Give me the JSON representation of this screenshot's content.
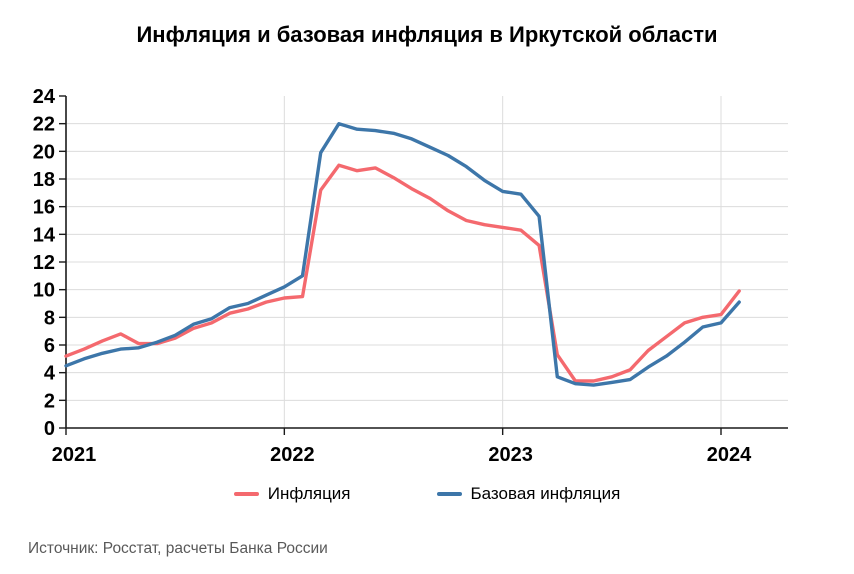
{
  "title": "Инфляция и базовая инфляция в Иркутской области",
  "source": "Источник: Росстат, расчеты Банка России",
  "colors": {
    "inflation_line": "#F4696E",
    "core_inflation_line": "#3D76A9",
    "gridline": "#DCDCDC",
    "axis": "#1A1A1A",
    "source_text": "#595959"
  },
  "legend": {
    "items": [
      {
        "label": "Инфляция",
        "color": "#F4696E"
      },
      {
        "label": "Базовая инфляция",
        "color": "#3D76A9"
      }
    ]
  },
  "chart_data": {
    "type": "line",
    "title": "Инфляция и базовая инфляция в Иркутской области",
    "xlabel": "",
    "ylabel": "",
    "ylim": [
      0,
      24
    ],
    "y_tick_step": 2,
    "y_ticks": [
      0,
      2,
      4,
      6,
      8,
      10,
      12,
      14,
      16,
      18,
      20,
      22,
      24
    ],
    "x_tick_labels": [
      "2021",
      "2022",
      "2023",
      "2024"
    ],
    "grid": true,
    "legend_position": "bottom",
    "x": [
      "2021-01",
      "2021-02",
      "2021-03",
      "2021-04",
      "2021-05",
      "2021-06",
      "2021-07",
      "2021-08",
      "2021-09",
      "2021-10",
      "2021-11",
      "2021-12",
      "2022-01",
      "2022-02",
      "2022-03",
      "2022-04",
      "2022-05",
      "2022-06",
      "2022-07",
      "2022-08",
      "2022-09",
      "2022-10",
      "2022-11",
      "2022-12",
      "2023-01",
      "2023-02",
      "2023-03",
      "2023-04",
      "2023-05",
      "2023-06",
      "2023-07",
      "2023-08",
      "2023-09",
      "2023-10",
      "2023-11",
      "2023-12",
      "2024-01",
      "2024-02"
    ],
    "series": [
      {
        "name": "Инфляция",
        "color": "#F4696E",
        "values": [
          5.2,
          5.7,
          6.3,
          6.8,
          6.1,
          6.1,
          6.5,
          7.2,
          7.6,
          8.3,
          8.6,
          9.1,
          9.4,
          9.5,
          17.2,
          19.0,
          18.6,
          18.8,
          18.1,
          17.3,
          16.6,
          15.7,
          15.0,
          14.7,
          14.5,
          14.3,
          13.2,
          5.3,
          3.4,
          3.4,
          3.7,
          4.2,
          5.6,
          6.6,
          7.6,
          8.0,
          8.2,
          9.9
        ]
      },
      {
        "name": "Базовая инфляция",
        "color": "#3D76A9",
        "values": [
          4.5,
          5.0,
          5.4,
          5.7,
          5.8,
          6.2,
          6.7,
          7.5,
          7.9,
          8.7,
          9.0,
          9.6,
          10.2,
          11.0,
          19.9,
          22.0,
          21.6,
          21.5,
          21.3,
          20.9,
          20.3,
          19.7,
          18.9,
          17.9,
          17.1,
          16.9,
          15.3,
          3.7,
          3.2,
          3.1,
          3.3,
          3.5,
          4.4,
          5.2,
          6.2,
          7.3,
          7.6,
          9.1
        ]
      }
    ]
  }
}
